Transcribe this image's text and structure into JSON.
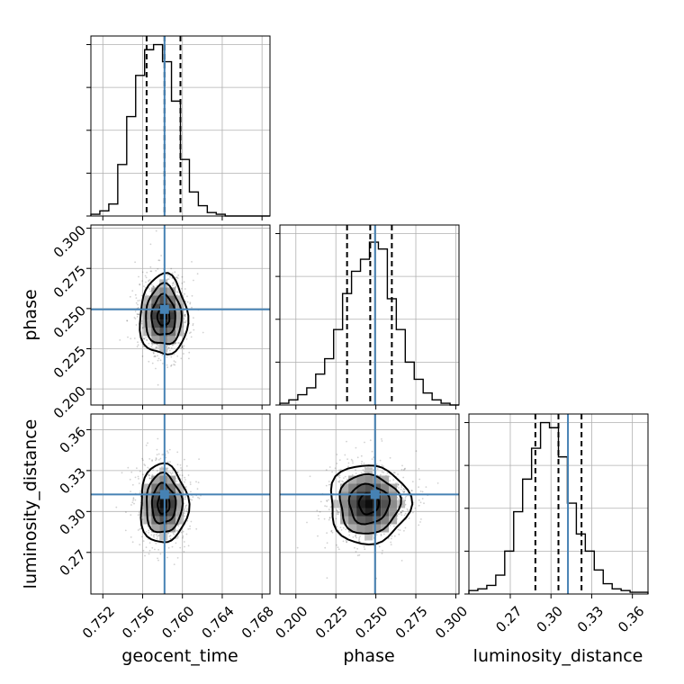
{
  "chart_data": {
    "type": "corner",
    "parameters": [
      {
        "name": "geocent_time",
        "label": "geocent_time",
        "range": [
          0.7508,
          0.7688
        ],
        "ticks": [
          "0.752",
          "0.756",
          "0.760",
          "0.764",
          "0.768"
        ],
        "tick_values": [
          0.752,
          0.756,
          0.76,
          0.764,
          0.768
        ],
        "truth": 0.7582,
        "quantiles": [
          0.7564,
          0.7582,
          0.7598
        ],
        "mean": 0.7581,
        "sd": 0.0012
      },
      {
        "name": "phase",
        "label": "phase",
        "range": [
          0.19,
          0.302
        ],
        "ticks": [
          "0.200",
          "0.225",
          "0.250",
          "0.275",
          "0.300"
        ],
        "tick_values": [
          0.2,
          0.225,
          0.25,
          0.275,
          0.3
        ],
        "truth": 0.2495,
        "quantiles": [
          0.232,
          0.2465,
          0.26
        ],
        "mean": 0.2455,
        "sd": 0.0125
      },
      {
        "name": "luminosity_distance",
        "label": "luminosity_distance",
        "range": [
          0.2395,
          0.3715
        ],
        "ticks": [
          "0.27",
          "0.30",
          "0.33",
          "0.36"
        ],
        "tick_values": [
          0.27,
          0.3,
          0.33,
          0.36
        ],
        "truth": 0.3125,
        "quantiles": [
          0.2885,
          0.3055,
          0.3225
        ],
        "mean": 0.3055,
        "sd": 0.0145
      }
    ],
    "histograms": {
      "geocent_time": [
        0.01,
        0.03,
        0.07,
        0.3,
        0.58,
        0.82,
        0.97,
        1.0,
        0.9,
        0.67,
        0.33,
        0.14,
        0.06,
        0.02,
        0.01,
        0,
        0,
        0,
        0,
        0
      ],
      "phase": [
        0.01,
        0.03,
        0.06,
        0.1,
        0.18,
        0.27,
        0.44,
        0.65,
        0.78,
        0.85,
        0.95,
        0.91,
        0.62,
        0.44,
        0.25,
        0.15,
        0.07,
        0.03,
        0.01,
        0
      ],
      "luminosity_distance": [
        0.02,
        0.03,
        0.05,
        0.11,
        0.25,
        0.48,
        0.67,
        0.85,
        1.0,
        0.97,
        0.8,
        0.53,
        0.35,
        0.25,
        0.14,
        0.06,
        0.03,
        0.02,
        0.01,
        0.01
      ]
    },
    "title": "",
    "grid": true
  }
}
